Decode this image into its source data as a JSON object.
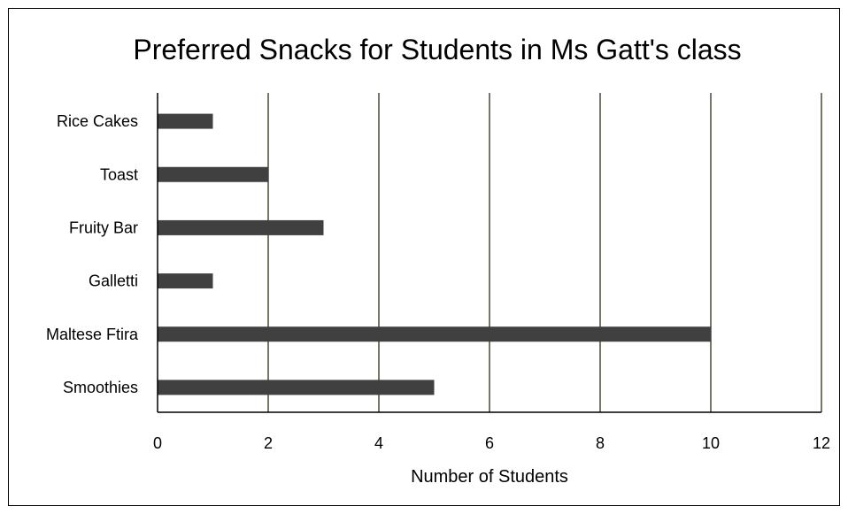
{
  "chart_data": {
    "type": "bar",
    "orientation": "horizontal",
    "title": "Preferred Snacks for Students in Ms Gatt's class",
    "xlabel": "Number of Students",
    "ylabel": "",
    "categories": [
      "Rice Cakes",
      "Toast",
      "Fruity Bar",
      "Galletti",
      "Maltese Ftira",
      "Smoothies"
    ],
    "values": [
      1,
      2,
      3,
      1,
      10,
      5
    ],
    "xlim": [
      0,
      12
    ],
    "xticks": [
      "0",
      "2",
      "4",
      "6",
      "8",
      "10",
      "12"
    ],
    "grid": "vertical",
    "legend": "none",
    "colors": {
      "bar": "#404040",
      "grid": "#4a4a32",
      "axis": "#000000",
      "text": "#000000"
    }
  }
}
